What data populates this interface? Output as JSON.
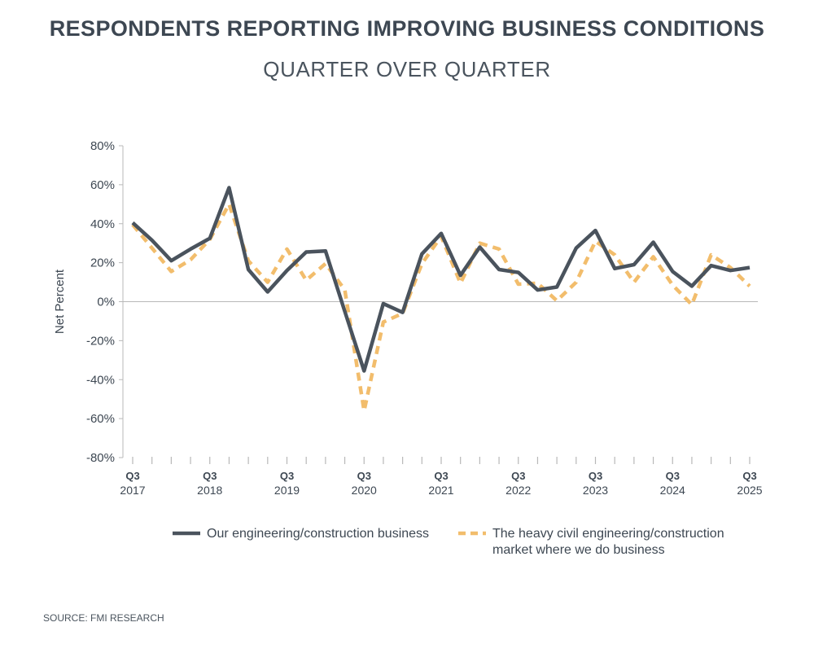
{
  "title": "RESPONDENTS REPORTING IMPROVING BUSINESS CONDITIONS",
  "subtitle": "QUARTER OVER QUARTER",
  "source": "SOURCE: FMI RESEARCH",
  "colors": {
    "series1": "#4a535d",
    "series2": "#f2bd6c",
    "axis": "#b8b8b8",
    "text": "#3d4752"
  },
  "chart_data": {
    "type": "line",
    "ylabel": "Net Percent",
    "ylim": [
      -80,
      80
    ],
    "ytick_values": [
      80,
      60,
      40,
      20,
      0,
      -20,
      -40,
      -60,
      -80
    ],
    "yticks": [
      "80%",
      "60%",
      "40%",
      "20%",
      "0%",
      "-20%",
      "-40%",
      "-60%",
      "-80%"
    ],
    "x": [
      "Q3 2017",
      "Q4 2017",
      "Q1 2018",
      "Q2 2018",
      "Q3 2018",
      "Q4 2018",
      "Q1 2019",
      "Q2 2019",
      "Q3 2019",
      "Q4 2019",
      "Q1 2020",
      "Q2 2020",
      "Q3 2020",
      "Q4 2020",
      "Q1 2021",
      "Q2 2021",
      "Q3 2021",
      "Q4 2021",
      "Q1 2022",
      "Q2 2022",
      "Q3 2022",
      "Q4 2022",
      "Q1 2023",
      "Q2 2023",
      "Q3 2023",
      "Q4 2023",
      "Q1 2024",
      "Q2 2024",
      "Q3 2024",
      "Q4 2024",
      "Q1 2025",
      "Q2 2025",
      "Q3 2025"
    ],
    "xtick_labels": [
      {
        "index": 0,
        "quarter": "Q3",
        "year": "2017"
      },
      {
        "index": 4,
        "quarter": "Q3",
        "year": "2018"
      },
      {
        "index": 8,
        "quarter": "Q3",
        "year": "2019"
      },
      {
        "index": 12,
        "quarter": "Q3",
        "year": "2020"
      },
      {
        "index": 16,
        "quarter": "Q3",
        "year": "2021"
      },
      {
        "index": 20,
        "quarter": "Q3",
        "year": "2022"
      },
      {
        "index": 24,
        "quarter": "Q3",
        "year": "2023"
      },
      {
        "index": 28,
        "quarter": "Q3",
        "year": "2024"
      },
      {
        "index": 32,
        "quarter": "Q3",
        "year": "2025"
      }
    ],
    "series": [
      {
        "name": "Our engineering/construction business",
        "style": "solid",
        "values": [
          40.5,
          31.5,
          21,
          27,
          32.5,
          58.5,
          16.5,
          5,
          16,
          25.5,
          26,
          -5,
          -35.5,
          -1,
          -5.5,
          24.5,
          35,
          13.5,
          28,
          16.5,
          15,
          6,
          7.5,
          27.5,
          36.5,
          17,
          19,
          30.5,
          15.5,
          8,
          18.5,
          16,
          17.5
        ]
      },
      {
        "name": "The heavy civil engineering/construction market where we do business",
        "style": "dashed",
        "values": [
          39.5,
          27.5,
          15.5,
          21.5,
          32,
          50,
          21,
          10,
          27,
          11,
          19.5,
          6,
          -56,
          -10.5,
          -6,
          19.5,
          33.5,
          9.5,
          30,
          27,
          9,
          9.5,
          0.5,
          10,
          31,
          24,
          10,
          23,
          8.5,
          -1.5,
          24,
          17.5,
          8
        ]
      }
    ],
    "legend": "bottom",
    "grid": false
  }
}
